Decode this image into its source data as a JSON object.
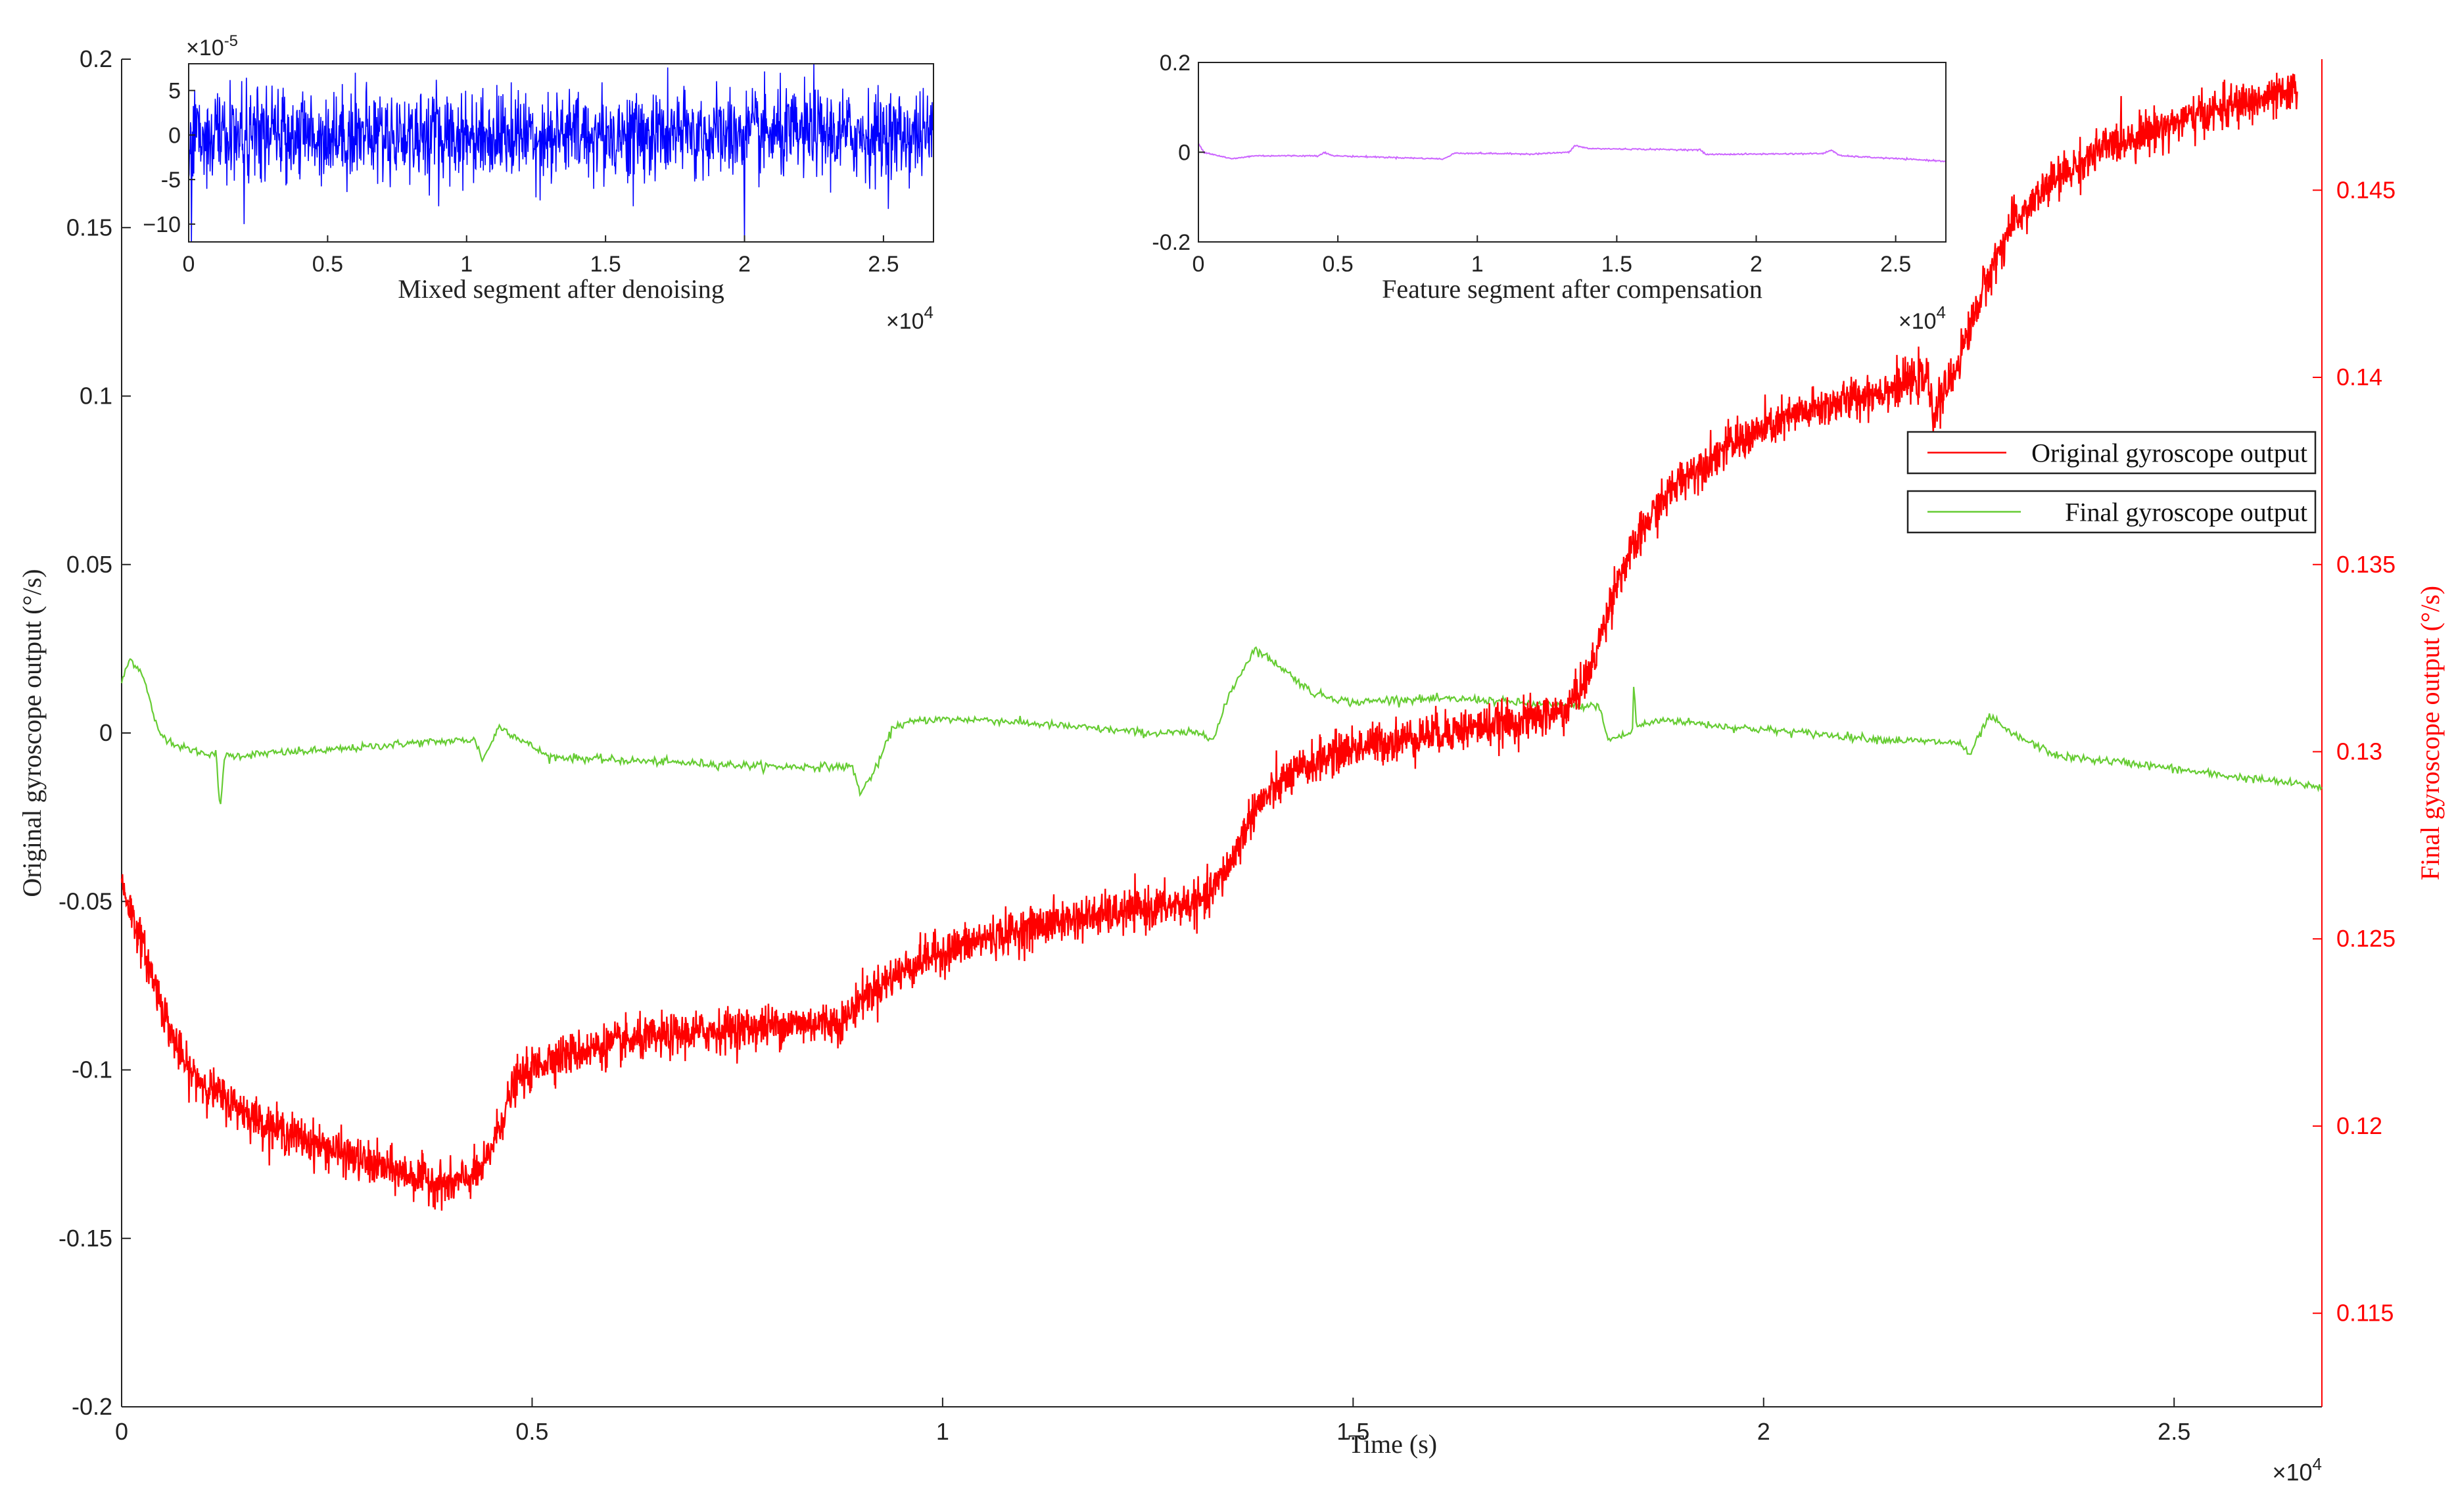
{
  "chart_data": [
    {
      "type": "line",
      "xlabel": "Time (s)",
      "ylabel": "Original gyroscope output (°/s)",
      "ylabel_right": "Final gyroscope output (°/s)",
      "x_exponent": "×10^4",
      "xlim": [
        0,
        26800
      ],
      "ylim": [
        -0.2,
        0.2
      ],
      "ylim_right": [
        0.1125,
        0.1485
      ],
      "x_ticks": [
        0,
        5000,
        10000,
        15000,
        20000,
        25000
      ],
      "x_tick_labels": [
        "0",
        "0.5",
        "1",
        "1.5",
        "2",
        "2.5"
      ],
      "y_ticks": [
        -0.2,
        -0.15,
        -0.1,
        -0.05,
        0,
        0.05,
        0.1,
        0.15,
        0.2
      ],
      "y_tick_labels": [
        "-0.2",
        "-0.15",
        "-0.1",
        "-0.05",
        "0",
        "0.05",
        "0.1",
        "0.15",
        "0.2"
      ],
      "y_right_ticks": [
        0.115,
        0.12,
        0.125,
        0.13,
        0.135,
        0.14,
        0.145
      ],
      "y_right_tick_labels": [
        "0.115",
        "0.12",
        "0.125",
        "0.13",
        "0.135",
        "0.14",
        "0.145"
      ],
      "legend": {
        "placement": "right",
        "entries": [
          "Original gyroscope output",
          "Final gyroscope output"
        ]
      },
      "series": [
        {
          "name": "Original gyroscope output",
          "axis": "right",
          "color": "#ff0000",
          "points": [
            [
              0,
              0.1265
            ],
            [
              300,
              0.1245
            ],
            [
              600,
              0.1225
            ],
            [
              800,
              0.1215
            ],
            [
              1200,
              0.1208
            ],
            [
              1800,
              0.12
            ],
            [
              2400,
              0.1195
            ],
            [
              3000,
              0.119
            ],
            [
              3500,
              0.1187
            ],
            [
              4000,
              0.1184
            ],
            [
              4400,
              0.1188
            ],
            [
              4600,
              0.12
            ],
            [
              4800,
              0.1212
            ],
            [
              5200,
              0.1218
            ],
            [
              6000,
              0.1222
            ],
            [
              7000,
              0.1225
            ],
            [
              8000,
              0.1227
            ],
            [
              8800,
              0.1228
            ],
            [
              9000,
              0.1234
            ],
            [
              9400,
              0.124
            ],
            [
              9800,
              0.1245
            ],
            [
              10500,
              0.125
            ],
            [
              11500,
              0.1255
            ],
            [
              12500,
              0.1258
            ],
            [
              13200,
              0.126
            ],
            [
              13500,
              0.127
            ],
            [
              13800,
              0.1285
            ],
            [
              14200,
              0.1293
            ],
            [
              14600,
              0.1298
            ],
            [
              15000,
              0.1301
            ],
            [
              16000,
              0.1305
            ],
            [
              17000,
              0.1308
            ],
            [
              17600,
              0.1311
            ],
            [
              17900,
              0.1322
            ],
            [
              18200,
              0.1345
            ],
            [
              18600,
              0.1362
            ],
            [
              19000,
              0.1373
            ],
            [
              19600,
              0.1382
            ],
            [
              20400,
              0.139
            ],
            [
              21200,
              0.1395
            ],
            [
              22000,
              0.14
            ],
            [
              22050,
              0.139
            ],
            [
              22300,
              0.14
            ],
            [
              22700,
              0.1425
            ],
            [
              23000,
              0.144
            ],
            [
              23500,
              0.1452
            ],
            [
              24200,
              0.1462
            ],
            [
              25000,
              0.1468
            ],
            [
              25800,
              0.1473
            ],
            [
              26500,
              0.1476
            ]
          ]
        },
        {
          "name": "Final gyroscope output",
          "axis": "left",
          "color": "#66cc33",
          "points": [
            [
              0,
              0.015
            ],
            [
              100,
              0.022
            ],
            [
              250,
              0.018
            ],
            [
              450,
              0.0
            ],
            [
              700,
              -0.004
            ],
            [
              1000,
              -0.006
            ],
            [
              1150,
              -0.006
            ],
            [
              1200,
              -0.024
            ],
            [
              1250,
              -0.007
            ],
            [
              1800,
              -0.006
            ],
            [
              2600,
              -0.005
            ],
            [
              3500,
              -0.003
            ],
            [
              4300,
              -0.002
            ],
            [
              4400,
              -0.008
            ],
            [
              4600,
              0.002
            ],
            [
              4800,
              -0.001
            ],
            [
              5200,
              -0.007
            ],
            [
              6000,
              -0.008
            ],
            [
              7000,
              -0.009
            ],
            [
              8000,
              -0.01
            ],
            [
              8900,
              -0.01
            ],
            [
              9000,
              -0.018
            ],
            [
              9200,
              -0.01
            ],
            [
              9400,
              0.002
            ],
            [
              9800,
              0.004
            ],
            [
              10500,
              0.004
            ],
            [
              11500,
              0.002
            ],
            [
              12500,
              0.0
            ],
            [
              13200,
              0.0
            ],
            [
              13300,
              -0.002
            ],
            [
              13500,
              0.012
            ],
            [
              13800,
              0.025
            ],
            [
              14100,
              0.02
            ],
            [
              14500,
              0.012
            ],
            [
              15000,
              0.009
            ],
            [
              15500,
              0.01
            ],
            [
              16500,
              0.01
            ],
            [
              17500,
              0.008
            ],
            [
              18000,
              0.008
            ],
            [
              18100,
              -0.002
            ],
            [
              18400,
              0.0
            ],
            [
              18420,
              0.015
            ],
            [
              18450,
              0.002
            ],
            [
              18800,
              0.004
            ],
            [
              19500,
              0.002
            ],
            [
              20500,
              0.0
            ],
            [
              21500,
              -0.002
            ],
            [
              22400,
              -0.003
            ],
            [
              22500,
              -0.007
            ],
            [
              22750,
              0.005
            ],
            [
              23000,
              0.0
            ],
            [
              23600,
              -0.007
            ],
            [
              24500,
              -0.009
            ],
            [
              25400,
              -0.012
            ],
            [
              26800,
              -0.016
            ]
          ]
        }
      ]
    },
    {
      "type": "line",
      "xlabel": "Mixed segment after denoising",
      "x_exponent": "×10^4",
      "y_exponent": "×10^-5",
      "xlim": [
        0,
        26800
      ],
      "ylim": [
        -12,
        8
      ],
      "x_ticks": [
        0,
        5000,
        10000,
        15000,
        20000,
        25000
      ],
      "x_tick_labels": [
        "0",
        "0.5",
        "1",
        "1.5",
        "2",
        "2.5"
      ],
      "y_ticks": [
        -10,
        -5,
        0,
        5
      ],
      "y_tick_labels": [
        "−10",
        "-5",
        "0",
        "5"
      ],
      "series": [
        {
          "color": "#0000ff",
          "noise_std": 2.5,
          "spikes": [
            [
              100,
              -12
            ],
            [
              2000,
              -10
            ],
            [
              9000,
              -8
            ],
            [
              20000,
              -12
            ],
            [
              22500,
              8
            ],
            [
              12500,
              -7
            ],
            [
              6000,
              7
            ],
            [
              16000,
              -8
            ]
          ]
        }
      ]
    },
    {
      "type": "line",
      "xlabel": "Feature segment after compensation",
      "x_exponent": "×10^4",
      "xlim": [
        0,
        26800
      ],
      "ylim": [
        -0.2,
        0.2
      ],
      "x_ticks": [
        0,
        5000,
        10000,
        15000,
        20000,
        25000
      ],
      "x_tick_labels": [
        "0",
        "0.5",
        "1",
        "1.5",
        "2",
        "2.5"
      ],
      "y_ticks": [
        -0.2,
        0,
        0.2
      ],
      "y_tick_labels": [
        "-0.2",
        "0",
        "0.2"
      ],
      "series": [
        {
          "color": "#cc66ff",
          "points": [
            [
              0,
              0.02
            ],
            [
              200,
              0.0
            ],
            [
              1200,
              -0.015
            ],
            [
              2000,
              -0.008
            ],
            [
              4300,
              -0.008
            ],
            [
              4500,
              0.0
            ],
            [
              4800,
              -0.008
            ],
            [
              8800,
              -0.015
            ],
            [
              9200,
              -0.002
            ],
            [
              12000,
              -0.004
            ],
            [
              13300,
              0.0
            ],
            [
              13500,
              0.015
            ],
            [
              14000,
              0.008
            ],
            [
              18000,
              0.005
            ],
            [
              18200,
              -0.005
            ],
            [
              22400,
              -0.003
            ],
            [
              22700,
              0.005
            ],
            [
              23000,
              -0.008
            ],
            [
              26800,
              -0.02
            ]
          ]
        }
      ]
    }
  ]
}
